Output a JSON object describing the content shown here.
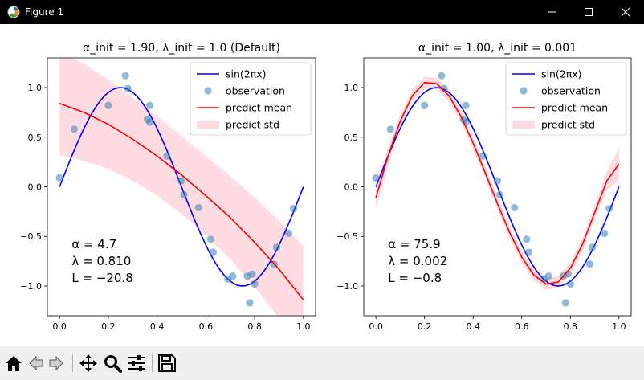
{
  "window": {
    "title": "Figure 1",
    "icons": [
      "figure-icon",
      "minimize-icon",
      "maximize-icon",
      "close-icon"
    ]
  },
  "toolbar": {
    "icons": [
      "home-icon",
      "back-arrow-icon",
      "forward-arrow-icon",
      "pan-icon",
      "zoom-icon",
      "configure-subplots-icon",
      "save-icon"
    ]
  },
  "colors": {
    "true_curve": "#0000ff",
    "observation": "#1f77b4",
    "predict_mean": "#ff0000",
    "predict_std": "#ffc0cb"
  },
  "chart_data": [
    {
      "type": "line",
      "title_alpha": "α_init = 1.90,",
      "title_lambda": "λ_init = 1.0 (Default)",
      "xlim": [
        -0.05,
        1.05
      ],
      "ylim": [
        -1.3,
        1.3
      ],
      "xticks": [
        "0.0",
        "0.2",
        "0.4",
        "0.6",
        "0.8",
        "1.0"
      ],
      "xtick_values": [
        0.0,
        0.2,
        0.4,
        0.6,
        0.8,
        1.0
      ],
      "yticks": [
        "−1.0",
        "−0.5",
        "0.0",
        "0.5",
        "1.0"
      ],
      "ytick_values": [
        -1.0,
        -0.5,
        0.0,
        0.5,
        1.0
      ],
      "legend": [
        "sin(2πx)",
        "observation",
        "predict mean",
        "predict std"
      ],
      "legend_loc": "upper right",
      "annotation": [
        "α = 4.7",
        "λ = 0.810",
        "L = −20.8"
      ],
      "predict_mean": {
        "x": [
          0.0,
          0.1,
          0.2,
          0.3,
          0.4,
          0.5,
          0.6,
          0.7,
          0.8,
          0.9,
          1.0
        ],
        "y": [
          0.84,
          0.75,
          0.63,
          0.48,
          0.31,
          0.12,
          -0.09,
          -0.31,
          -0.56,
          -0.83,
          -1.14
        ]
      },
      "predict_std": [
        0.52,
        0.49,
        0.45,
        0.42,
        0.4,
        0.39,
        0.4,
        0.42,
        0.45,
        0.49,
        0.54
      ]
    },
    {
      "type": "line",
      "title_alpha": "α_init = 1.00,",
      "title_lambda": "λ_init = 0.001",
      "xlim": [
        -0.05,
        1.05
      ],
      "ylim": [
        -1.3,
        1.3
      ],
      "xticks": [
        "0.0",
        "0.2",
        "0.4",
        "0.6",
        "0.8",
        "1.0"
      ],
      "xtick_values": [
        0.0,
        0.2,
        0.4,
        0.6,
        0.8,
        1.0
      ],
      "yticks": [
        "−1.0",
        "−0.5",
        "0.0",
        "0.5",
        "1.0"
      ],
      "ytick_values": [
        -1.0,
        -0.5,
        0.0,
        0.5,
        1.0
      ],
      "legend": [
        "sin(2πx)",
        "observation",
        "predict mean",
        "predict std"
      ],
      "legend_loc": "upper right",
      "annotation": [
        "α = 75.9",
        "λ = 0.002",
        "L = −0.8"
      ],
      "predict_mean": {
        "x": [
          0.0,
          0.05,
          0.1,
          0.15,
          0.2,
          0.25,
          0.3,
          0.35,
          0.4,
          0.45,
          0.5,
          0.55,
          0.6,
          0.65,
          0.7,
          0.75,
          0.8,
          0.85,
          0.9,
          0.95,
          1.0
        ],
        "y": [
          -0.11,
          0.31,
          0.66,
          0.92,
          1.05,
          1.04,
          0.92,
          0.71,
          0.44,
          0.14,
          -0.17,
          -0.46,
          -0.71,
          -0.89,
          -0.98,
          -0.96,
          -0.82,
          -0.58,
          -0.26,
          0.06,
          0.23
        ]
      },
      "predict_std": [
        0.13,
        0.09,
        0.07,
        0.06,
        0.06,
        0.06,
        0.06,
        0.06,
        0.06,
        0.06,
        0.06,
        0.06,
        0.06,
        0.06,
        0.06,
        0.06,
        0.06,
        0.06,
        0.07,
        0.1,
        0.16
      ]
    }
  ],
  "true_curve": {
    "label": "sin(2πx)",
    "samples": 101
  },
  "observations": {
    "x": [
      0.0,
      0.06,
      0.2,
      0.27,
      0.28,
      0.36,
      0.37,
      0.37,
      0.44,
      0.5,
      0.51,
      0.57,
      0.62,
      0.63,
      0.69,
      0.71,
      0.77,
      0.78,
      0.79,
      0.8,
      0.88,
      0.89,
      0.94,
      0.96
    ],
    "y": [
      0.09,
      0.58,
      0.82,
      1.12,
      0.99,
      0.68,
      0.82,
      0.65,
      0.31,
      0.06,
      -0.08,
      -0.21,
      -0.53,
      -0.66,
      -0.93,
      -0.9,
      -0.9,
      -1.17,
      -0.88,
      -0.98,
      -0.78,
      -0.61,
      -0.47,
      -0.22
    ]
  }
}
